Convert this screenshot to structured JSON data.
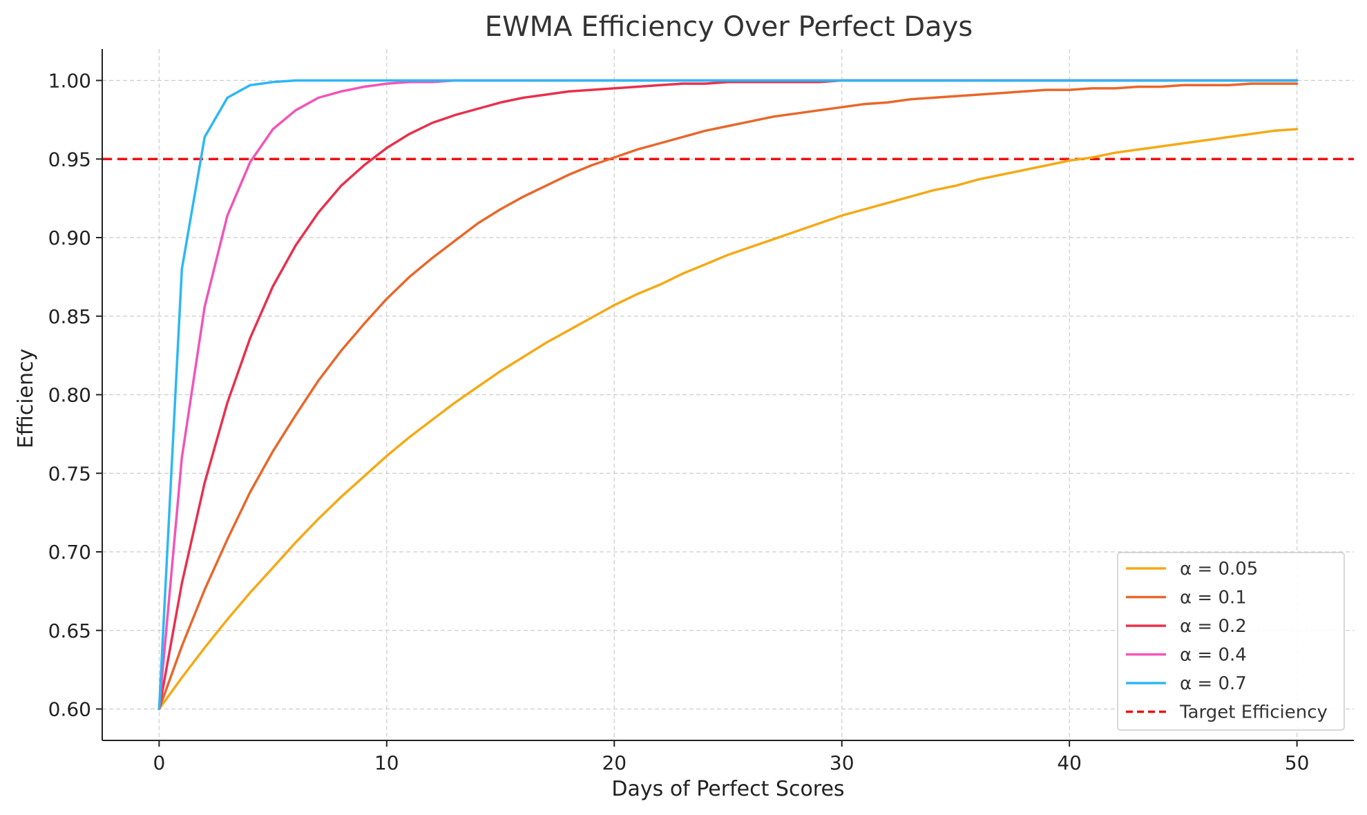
{
  "chart_data": {
    "type": "line",
    "title": "EWMA Efficiency Over Perfect Days",
    "xlabel": "Days of Perfect Scores",
    "ylabel": "Efficiency",
    "xlim": [
      -2.5,
      52.5
    ],
    "ylim": [
      0.58,
      1.02
    ],
    "x_ticks": [
      "0",
      "10",
      "20",
      "30",
      "40",
      "50"
    ],
    "y_ticks": [
      "0.60",
      "0.65",
      "0.70",
      "0.75",
      "0.80",
      "0.85",
      "0.90",
      "0.95",
      "1.00"
    ],
    "grid": true,
    "legend_position": "bottom-right",
    "x": [
      0,
      1,
      2,
      3,
      4,
      5,
      6,
      7,
      8,
      9,
      10,
      11,
      12,
      13,
      14,
      15,
      16,
      17,
      18,
      19,
      20,
      21,
      22,
      23,
      24,
      25,
      26,
      27,
      28,
      29,
      30,
      31,
      32,
      33,
      34,
      35,
      36,
      37,
      38,
      39,
      40,
      41,
      42,
      43,
      44,
      45,
      46,
      47,
      48,
      49,
      50
    ],
    "series": [
      {
        "name": "α = 0.05",
        "color": "#f5a914",
        "values": [
          0.6,
          0.62,
          0.639,
          0.657,
          0.674,
          0.69,
          0.706,
          0.721,
          0.735,
          0.748,
          0.761,
          0.773,
          0.784,
          0.795,
          0.805,
          0.815,
          0.824,
          0.833,
          0.841,
          0.849,
          0.857,
          0.864,
          0.87,
          0.877,
          0.883,
          0.889,
          0.894,
          0.899,
          0.904,
          0.909,
          0.914,
          0.918,
          0.922,
          0.926,
          0.93,
          0.933,
          0.937,
          0.94,
          0.943,
          0.946,
          0.949,
          0.951,
          0.954,
          0.956,
          0.958,
          0.96,
          0.962,
          0.964,
          0.966,
          0.968,
          0.969
        ]
      },
      {
        "name": "α = 0.1",
        "color": "#e8672a",
        "values": [
          0.6,
          0.64,
          0.676,
          0.708,
          0.738,
          0.764,
          0.787,
          0.809,
          0.828,
          0.845,
          0.861,
          0.875,
          0.887,
          0.898,
          0.909,
          0.918,
          0.926,
          0.933,
          0.94,
          0.946,
          0.951,
          0.956,
          0.96,
          0.964,
          0.968,
          0.971,
          0.974,
          0.977,
          0.979,
          0.981,
          0.983,
          0.985,
          0.986,
          0.988,
          0.989,
          0.99,
          0.991,
          0.992,
          0.993,
          0.994,
          0.994,
          0.995,
          0.995,
          0.996,
          0.996,
          0.997,
          0.997,
          0.997,
          0.998,
          0.998,
          0.998
        ]
      },
      {
        "name": "α = 0.2",
        "color": "#e8304d",
        "values": [
          0.6,
          0.68,
          0.744,
          0.795,
          0.836,
          0.869,
          0.895,
          0.916,
          0.933,
          0.946,
          0.957,
          0.966,
          0.973,
          0.978,
          0.982,
          0.986,
          0.989,
          0.991,
          0.993,
          0.994,
          0.995,
          0.996,
          0.997,
          0.998,
          0.998,
          0.999,
          0.999,
          0.999,
          0.999,
          0.999,
          1.0,
          1.0,
          1.0,
          1.0,
          1.0,
          1.0,
          1.0,
          1.0,
          1.0,
          1.0,
          1.0,
          1.0,
          1.0,
          1.0,
          1.0,
          1.0,
          1.0,
          1.0,
          1.0,
          1.0,
          1.0
        ]
      },
      {
        "name": "α = 0.4",
        "color": "#f254b8",
        "values": [
          0.6,
          0.76,
          0.856,
          0.914,
          0.948,
          0.969,
          0.981,
          0.989,
          0.993,
          0.996,
          0.998,
          0.999,
          0.999,
          1.0,
          1.0,
          1.0,
          1.0,
          1.0,
          1.0,
          1.0,
          1.0,
          1.0,
          1.0,
          1.0,
          1.0,
          1.0,
          1.0,
          1.0,
          1.0,
          1.0,
          1.0,
          1.0,
          1.0,
          1.0,
          1.0,
          1.0,
          1.0,
          1.0,
          1.0,
          1.0,
          1.0,
          1.0,
          1.0,
          1.0,
          1.0,
          1.0,
          1.0,
          1.0,
          1.0,
          1.0,
          1.0
        ]
      },
      {
        "name": "α = 0.7",
        "color": "#2db7f5",
        "values": [
          0.6,
          0.88,
          0.964,
          0.989,
          0.997,
          0.999,
          1.0,
          1.0,
          1.0,
          1.0,
          1.0,
          1.0,
          1.0,
          1.0,
          1.0,
          1.0,
          1.0,
          1.0,
          1.0,
          1.0,
          1.0,
          1.0,
          1.0,
          1.0,
          1.0,
          1.0,
          1.0,
          1.0,
          1.0,
          1.0,
          1.0,
          1.0,
          1.0,
          1.0,
          1.0,
          1.0,
          1.0,
          1.0,
          1.0,
          1.0,
          1.0,
          1.0,
          1.0,
          1.0,
          1.0,
          1.0,
          1.0,
          1.0,
          1.0,
          1.0,
          1.0
        ]
      }
    ],
    "reference_line": {
      "name": "Target Efficiency",
      "y": 0.95,
      "color": "#ee1111",
      "style": "dashed"
    }
  }
}
